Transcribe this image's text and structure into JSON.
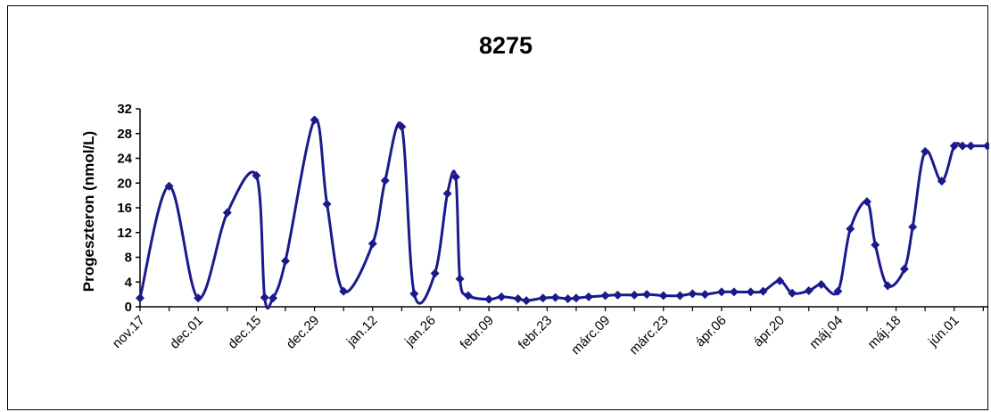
{
  "chart_data": {
    "type": "line",
    "title": "8275",
    "xlabel": "",
    "ylabel": "Progeszteron (nmol/L)",
    "ylim": [
      0,
      32
    ],
    "yticks": [
      0,
      4,
      8,
      12,
      16,
      20,
      24,
      28,
      32
    ],
    "xticks": [
      "nov.17",
      "dec.01",
      "dec.15",
      "dec.29",
      "jan.12",
      "jan.26",
      "febr.09",
      "febr.23",
      "márc.09",
      "márc.23",
      "ápr.06",
      "ápr.20",
      "máj.04",
      "máj.18",
      "jún.01"
    ],
    "xlim": [
      0,
      204
    ],
    "grid": false,
    "legend": "none",
    "line_color": "#1a1a8c",
    "series": [
      {
        "x": [
          0,
          7,
          14,
          21,
          28,
          30,
          32,
          35,
          42,
          45,
          49,
          56,
          59,
          63,
          66,
          71,
          74,
          76,
          77,
          79,
          84,
          87,
          91,
          93,
          97,
          100,
          103,
          105,
          108,
          112,
          115,
          119,
          122,
          126,
          130,
          133,
          136,
          140,
          143,
          147,
          150,
          154,
          157,
          161,
          164,
          168,
          171,
          175,
          177,
          180,
          184,
          186,
          189,
          193,
          196,
          198,
          200,
          204
        ],
        "y": [
          1.4,
          19.5,
          1.4,
          15.2,
          21.2,
          1.5,
          1.4,
          7.4,
          30.2,
          16.6,
          2.5,
          10.2,
          20.4,
          29.1,
          2.1,
          5.4,
          18.3,
          21.0,
          4.5,
          1.8,
          1.2,
          1.6,
          1.3,
          1.0,
          1.4,
          1.5,
          1.3,
          1.4,
          1.6,
          1.8,
          1.9,
          1.9,
          2.0,
          1.8,
          1.8,
          2.1,
          2.0,
          2.4,
          2.4,
          2.4,
          2.5,
          4.2,
          2.2,
          2.6,
          3.6,
          2.5,
          12.6,
          17.0,
          10.0,
          3.4,
          6.1,
          12.9,
          25.1,
          20.3,
          26.0,
          26.0,
          26.0,
          26.0
        ]
      }
    ]
  }
}
